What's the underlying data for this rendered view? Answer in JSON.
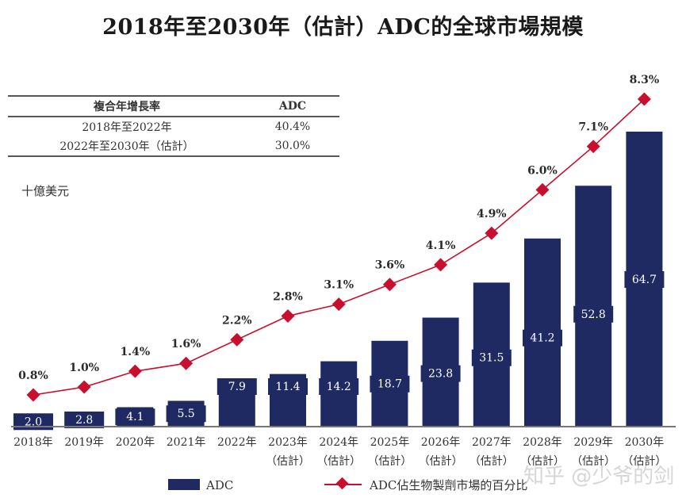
{
  "chart_data": {
    "type": "bar",
    "title": "2018年至2030年（估計）ADC的全球市場規模",
    "ylabel": "十億美元",
    "xlabel": "",
    "categories": [
      "2018年",
      "2019年",
      "2020年",
      "2021年",
      "2022年",
      "2023年",
      "2024年",
      "2025年",
      "2026年",
      "2027年",
      "2028年",
      "2029年",
      "2030年"
    ],
    "category_sublabels": [
      "",
      "",
      "",
      "",
      "",
      "（估計）",
      "（估計）",
      "（估計）",
      "（估計）",
      "（估計）",
      "（估計）",
      "（估計）",
      "（估計）"
    ],
    "series": [
      {
        "name": "ADC",
        "type": "bar",
        "color": "#1f2a63",
        "values": [
          2.0,
          2.8,
          4.1,
          5.5,
          7.9,
          11.4,
          14.2,
          18.7,
          23.8,
          31.5,
          41.2,
          52.8,
          64.7
        ],
        "labels": [
          "2.0",
          "2.8",
          "4.1",
          "5.5",
          "7.9",
          "11.4",
          "14.2",
          "18.7",
          "23.8",
          "31.5",
          "41.2",
          "52.8",
          "64.7"
        ]
      },
      {
        "name": "ADC佔生物製劑市場的百分比",
        "type": "line",
        "color": "#c8102e",
        "values": [
          0.8,
          1.0,
          1.4,
          1.6,
          2.2,
          2.8,
          3.1,
          3.6,
          4.1,
          4.9,
          6.0,
          7.1,
          8.3
        ],
        "labels": [
          "0.8%",
          "1.0%",
          "1.4%",
          "1.6%",
          "2.2%",
          "2.8%",
          "3.1%",
          "3.6%",
          "4.1%",
          "4.9%",
          "6.0%",
          "7.1%",
          "8.3%"
        ]
      }
    ],
    "ylim": [
      0,
      70
    ],
    "grid": false,
    "legend_position": "bottom"
  },
  "cagr_table": {
    "headers": [
      "複合年增長率",
      "ADC"
    ],
    "rows": [
      [
        "2018年至2022年",
        "40.4%"
      ],
      [
        "2022年至2030年（估計）",
        "30.0%"
      ]
    ]
  },
  "watermark": "知乎 @少爷的剑"
}
